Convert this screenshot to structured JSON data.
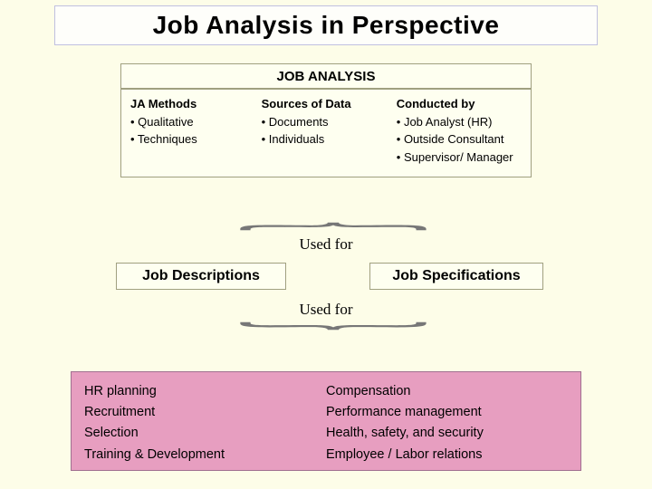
{
  "background_color": "#fdfde8",
  "title": "Job Analysis in Perspective",
  "header": "JOB ANALYSIS",
  "columns": {
    "c1": {
      "heading": "JA Methods",
      "items": [
        "• Qualitative",
        "• Techniques"
      ]
    },
    "c2": {
      "heading": "Sources of Data",
      "items": [
        "• Documents",
        "• Individuals"
      ]
    },
    "c3": {
      "heading": "Conducted by",
      "items": [
        "• Job Analyst (HR)",
        "• Outside Consultant",
        "• Supervisor/ Manager"
      ]
    }
  },
  "connector1": "Used for",
  "connector2": "Used for",
  "mid_left": "Job Descriptions",
  "mid_right": "Job Specifications",
  "bottom": {
    "left": [
      "HR planning",
      "Recruitment",
      "Selection",
      "Training & Development"
    ],
    "right": [
      "Compensation",
      "Performance management",
      "Health, safety, and security",
      "Employee / Labor relations"
    ]
  },
  "colors": {
    "box_bg": "#fefff0",
    "box_border": "#a0a080",
    "bottom_bg": "#e79ec0",
    "bottom_border": "#a07090",
    "title_border": "#c0c0e0"
  }
}
